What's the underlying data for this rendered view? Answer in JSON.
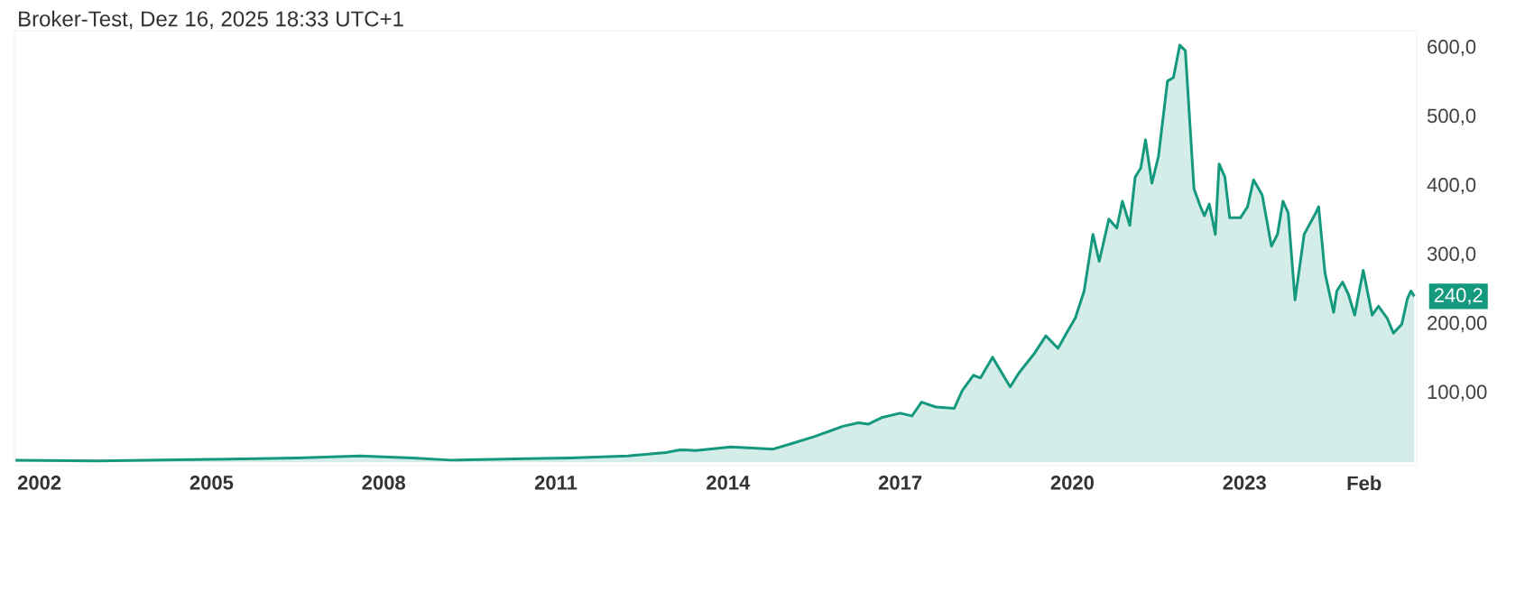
{
  "chart_data": {
    "type": "area",
    "title": "Broker-Test, Dez 16, 2025 18:33 UTC+1",
    "x": [
      "2001-08-01",
      "2003-01-01",
      "2005-01-01",
      "2006-07-01",
      "2007-08-01",
      "2008-07-01",
      "2009-03-01",
      "2010-07-01",
      "2011-04-01",
      "2012-04-01",
      "2012-12-01",
      "2013-03-01",
      "2013-06-10",
      "2014-01-20",
      "2014-10-15",
      "2015-02-25",
      "2015-07-01",
      "2015-10-20",
      "2016-01-01",
      "2016-04-10",
      "2016-06-10",
      "2016-09-10",
      "2017-01-01",
      "2017-03-15",
      "2017-05-15",
      "2017-08-15",
      "2017-12-10",
      "2018-02-01",
      "2018-04-10",
      "2018-05-25",
      "2018-08-10",
      "2018-12-01",
      "2019-01-25",
      "2019-05-01",
      "2019-07-15",
      "2019-10-01",
      "2019-11-25",
      "2020-01-20",
      "2020-03-15",
      "2020-05-10",
      "2020-06-20",
      "2020-08-20",
      "2020-10-10",
      "2020-11-15",
      "2021-01-01",
      "2021-02-05",
      "2021-03-10",
      "2021-04-10",
      "2021-05-20",
      "2021-07-01",
      "2021-08-28",
      "2021-10-05",
      "2021-11-15",
      "2021-12-20",
      "2022-02-14",
      "2022-03-25",
      "2022-04-20",
      "2022-05-20",
      "2022-06-28",
      "2022-07-22",
      "2022-08-28",
      "2022-09-28",
      "2022-12-05",
      "2023-01-20",
      "2023-02-28",
      "2023-04-22",
      "2023-06-20",
      "2023-07-28",
      "2023-09-02",
      "2023-10-05",
      "2023-11-18",
      "2024-01-15",
      "2024-03-28",
      "2024-04-16",
      "2024-05-26",
      "2024-07-20",
      "2024-08-10",
      "2024-09-16",
      "2024-10-23",
      "2024-12-02",
      "2025-01-26",
      "2025-03-22",
      "2025-05-01",
      "2025-06-25",
      "2025-08-05",
      "2025-09-28",
      "2025-11-03",
      "2025-11-25",
      "2025-12-16"
    ],
    "values": [
      3,
      2,
      4,
      6,
      9,
      6,
      3,
      5,
      6,
      9,
      14,
      18,
      17,
      22,
      19,
      28,
      37,
      46,
      52,
      57,
      55,
      65,
      71,
      67,
      87,
      80,
      78,
      104,
      126,
      122,
      152,
      109,
      129,
      157,
      183,
      165,
      187,
      209,
      248,
      330,
      291,
      352,
      339,
      378,
      343,
      413,
      426,
      467,
      404,
      443,
      552,
      557,
      604,
      596,
      396,
      370,
      357,
      374,
      330,
      432,
      413,
      354,
      354,
      370,
      409,
      387,
      313,
      330,
      378,
      361,
      235,
      330,
      361,
      370,
      274,
      217,
      248,
      261,
      243,
      213,
      278,
      213,
      226,
      209,
      187,
      200,
      237,
      248,
      240.2
    ],
    "color": "#15997e",
    "xlim": [
      "2001-07-25",
      "2026-01-01"
    ],
    "xticks": [
      "2002",
      "2005",
      "2008",
      "2011",
      "2014",
      "2017",
      "2020",
      "2023",
      {
        "value": "2025-02",
        "label": "Feb"
      }
    ],
    "ylim": [
      -5,
      625
    ],
    "yticks": [
      {
        "value": 100,
        "label": "100,00"
      },
      {
        "value": 200,
        "label": "200,00"
      },
      {
        "value": 300,
        "label": "300,0"
      },
      {
        "value": 400,
        "label": "400,0"
      },
      {
        "value": 500,
        "label": "500,0"
      },
      {
        "value": 600,
        "label": "600,0"
      }
    ],
    "annotations": [
      {
        "text": "240,2",
        "x": "2025-12-16",
        "y": 240.2
      }
    ]
  }
}
